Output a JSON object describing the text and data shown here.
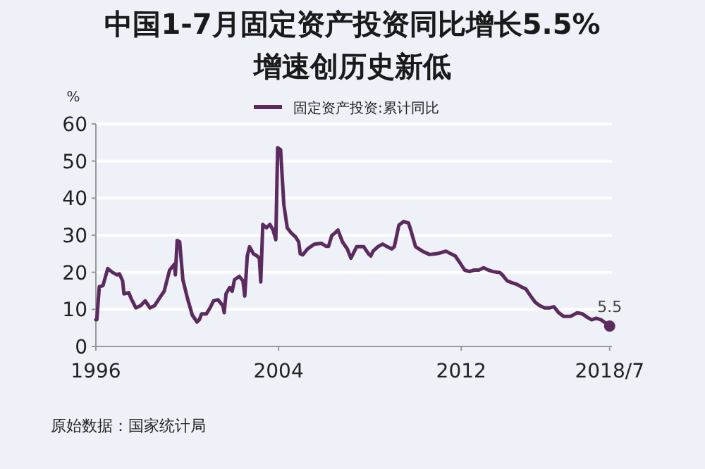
{
  "chart_data": {
    "type": "line",
    "title": "中国1-7月固定资产投资同比增长5.5%\n增速创历史新低",
    "ylabel": "%",
    "legend": "top",
    "grid": "y",
    "line_style": "solid",
    "marker": "none",
    "xlim": [
      1996,
      2018.6
    ],
    "xticks": [
      1996,
      2004,
      2012,
      {
        "value": 2018.5,
        "label": "2018/7"
      }
    ],
    "ylim": [
      0,
      60
    ],
    "yticks": [
      0,
      10,
      20,
      30,
      40,
      50,
      60
    ],
    "annotations": [
      {
        "text": "5.5",
        "x": 2018.5,
        "y": 5.5
      },
      "原始数据：国家统计局"
    ],
    "series": [
      {
        "name": "固定资产投资:累计同比",
        "color": "#5b2a5e",
        "x": [
          1996.0,
          1996.04,
          1996.15,
          1996.31,
          1996.52,
          1996.72,
          1996.93,
          1997.03,
          1997.17,
          1997.23,
          1997.44,
          1997.54,
          1997.75,
          1997.96,
          1998.16,
          1998.37,
          1998.57,
          1998.78,
          1998.99,
          1999.23,
          1999.44,
          1999.48,
          1999.56,
          1999.67,
          1999.81,
          2000.01,
          2000.22,
          2000.43,
          2000.53,
          2000.63,
          2000.84,
          2001.0,
          2001.15,
          2001.35,
          2001.56,
          2001.62,
          2001.7,
          2001.86,
          2001.97,
          2002.07,
          2002.28,
          2002.44,
          2002.52,
          2002.63,
          2002.73,
          2002.9,
          2003.06,
          2003.16,
          2003.22,
          2003.31,
          2003.47,
          2003.62,
          2003.76,
          2003.88,
          2003.96,
          2004.09,
          2004.23,
          2004.38,
          2004.54,
          2004.75,
          2004.88,
          2004.95,
          2005.06,
          2005.27,
          2005.57,
          2005.88,
          2006.09,
          2006.19,
          2006.33,
          2006.49,
          2006.6,
          2006.8,
          2007.01,
          2007.17,
          2007.42,
          2007.73,
          2007.94,
          2008.04,
          2008.14,
          2008.35,
          2008.56,
          2008.76,
          2008.96,
          2009.07,
          2009.27,
          2009.48,
          2009.69,
          2009.79,
          2010.0,
          2010.3,
          2010.61,
          2010.92,
          2011.12,
          2011.33,
          2011.54,
          2011.74,
          2011.95,
          2012.15,
          2012.36,
          2012.57,
          2012.77,
          2012.98,
          2013.19,
          2013.39,
          2013.7,
          2013.8,
          2014.01,
          2014.21,
          2014.42,
          2014.62,
          2014.83,
          2015.04,
          2015.24,
          2015.44,
          2015.65,
          2015.86,
          2016.06,
          2016.27,
          2016.48,
          2016.78,
          2017.09,
          2017.3,
          2017.51,
          2017.71,
          2017.91,
          2018.12,
          2018.5
        ],
        "values": [
          7.2,
          7.2,
          16.1,
          16.4,
          21,
          20,
          19.3,
          19.6,
          17.7,
          14.2,
          14.5,
          13,
          10.4,
          11,
          12.3,
          10.4,
          11,
          13,
          14.9,
          20.6,
          22.2,
          19.3,
          28.6,
          28.2,
          18,
          13,
          8.5,
          6.6,
          7.2,
          8.8,
          8.8,
          10.4,
          12.3,
          12.6,
          11,
          9.1,
          14.2,
          15.9,
          14.9,
          18,
          18.9,
          17.7,
          13.6,
          24.4,
          26.9,
          25,
          24.4,
          23.8,
          17.4,
          32.9,
          32,
          32.9,
          31.4,
          28.8,
          53.6,
          53,
          38.4,
          32,
          30.7,
          29.5,
          28.2,
          25,
          24.7,
          26.3,
          27.6,
          27.8,
          27,
          27,
          29.9,
          30.7,
          31.4,
          28.2,
          26.3,
          23.8,
          26.9,
          26.9,
          25,
          24.4,
          25.7,
          26.9,
          27.6,
          26.9,
          26.3,
          26.9,
          32.7,
          33.7,
          33.3,
          31.4,
          26.9,
          25.7,
          24.8,
          25,
          25.3,
          25.7,
          25,
          24.4,
          22.5,
          20.6,
          20.2,
          20.6,
          20.6,
          21.2,
          20.6,
          20.2,
          19.9,
          19.3,
          17.7,
          17.2,
          16.8,
          16.1,
          15.5,
          13.6,
          11.9,
          11,
          10.4,
          10.4,
          10.7,
          9.1,
          8.1,
          8.1,
          9.1,
          8.8,
          7.9,
          7.2,
          7.6,
          7.2,
          5.5
        ]
      }
    ]
  }
}
